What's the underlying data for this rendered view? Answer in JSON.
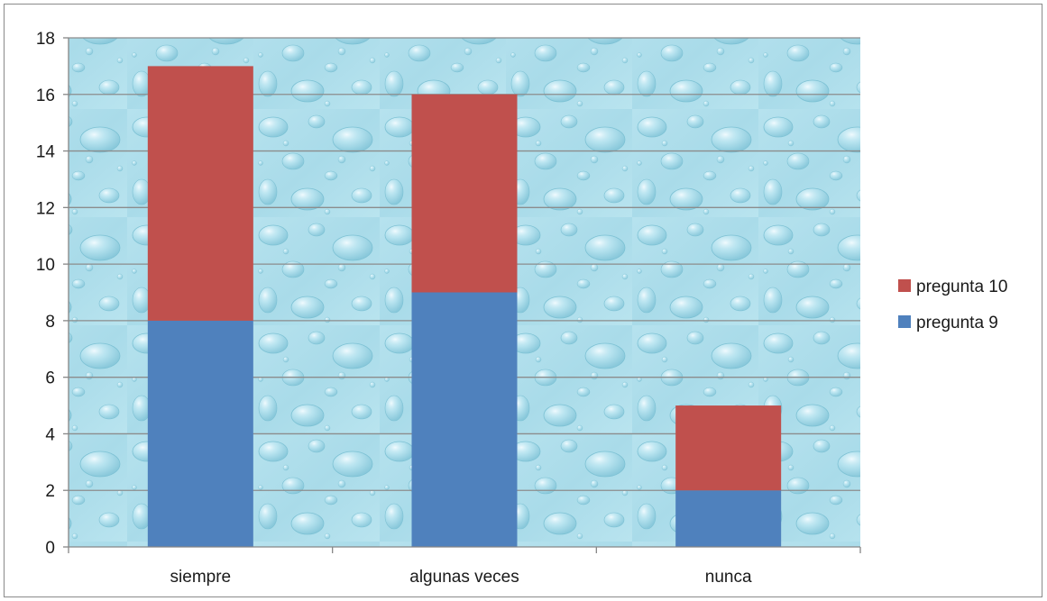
{
  "chart_data": {
    "type": "bar",
    "stacked": true,
    "categories": [
      "siempre",
      "algunas veces",
      "nunca"
    ],
    "series": [
      {
        "name": "pregunta 9",
        "values": [
          8,
          9,
          2
        ],
        "color": "#4F81BD"
      },
      {
        "name": "pregunta 10",
        "values": [
          9,
          7,
          3
        ],
        "color": "#C0504D"
      }
    ],
    "title": "",
    "xlabel": "",
    "ylabel": "",
    "ylim": [
      0,
      18
    ],
    "yticks": [
      0,
      2,
      4,
      6,
      8,
      10,
      12,
      14,
      16,
      18
    ],
    "grid": true,
    "legend_position": "right",
    "plot_background": "water droplets texture",
    "plot_background_color": "#B9E3EF"
  }
}
